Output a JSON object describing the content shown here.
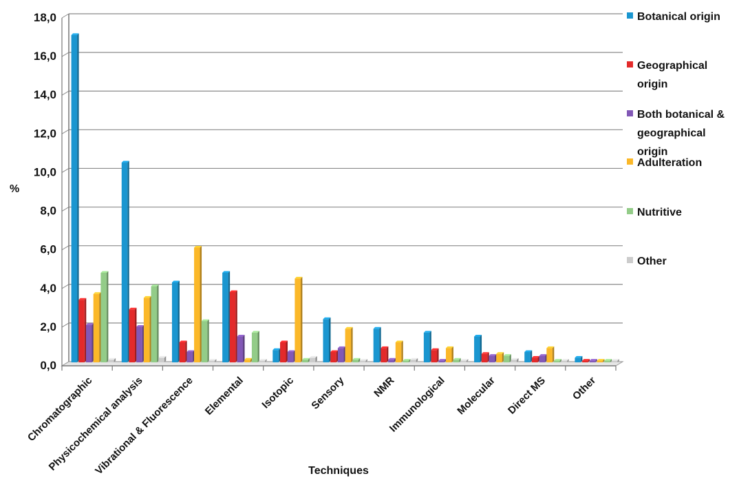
{
  "chart_data": {
    "type": "bar",
    "title": "",
    "xlabel": "Techniques",
    "ylabel": "%",
    "ylim": [
      0,
      18
    ],
    "yticks": [
      "0,0",
      "2,0",
      "4,0",
      "6,0",
      "8,0",
      "10,0",
      "12,0",
      "14,0",
      "16,0",
      "18,0"
    ],
    "grid": "horizontal",
    "legend_position": "right",
    "categories": [
      "Chromatographic",
      "Physicochemical analysis",
      "Vibrational & Fluorescence",
      "Elemental",
      "Isotopic",
      "Sensory",
      "NMR",
      "Immunological",
      "Molecular",
      "Direct MS",
      "Other"
    ],
    "series": [
      {
        "name": "Botanical origin",
        "legend_lines": [
          "Botanical origin"
        ],
        "color": "#1a96d0",
        "values": [
          16.9,
          10.3,
          4.1,
          4.6,
          0.6,
          2.2,
          1.7,
          1.5,
          1.3,
          0.5,
          0.2
        ]
      },
      {
        "name": "Geographical origin",
        "legend_lines": [
          "Geographical",
          "origin"
        ],
        "color": "#e32a2a",
        "values": [
          3.2,
          2.7,
          1.0,
          3.6,
          1.0,
          0.5,
          0.7,
          0.6,
          0.4,
          0.2,
          0.05
        ]
      },
      {
        "name": "Both botanical & geographical origin",
        "legend_lines": [
          "Both botanical &",
          "geographical",
          "origin"
        ],
        "color": "#8258b6",
        "values": [
          1.9,
          1.8,
          0.5,
          1.3,
          0.5,
          0.7,
          0.1,
          0.05,
          0.3,
          0.3,
          0.05
        ]
      },
      {
        "name": "Adulteration",
        "legend_lines": [
          "Adulteration"
        ],
        "color": "#fbb829",
        "values": [
          3.5,
          3.3,
          5.9,
          0.1,
          4.3,
          1.7,
          1.0,
          0.7,
          0.4,
          0.7,
          0.05
        ]
      },
      {
        "name": "Nutritive",
        "legend_lines": [
          "Nutritive"
        ],
        "color": "#93cc88",
        "values": [
          4.6,
          3.9,
          2.1,
          1.5,
          0.1,
          0.1,
          0.05,
          0.1,
          0.3,
          0.05,
          0.05
        ]
      },
      {
        "name": "Other",
        "legend_lines": [
          "Other"
        ],
        "color": "#cccccc",
        "values": [
          0.1,
          0.2,
          0.05,
          0.05,
          0.2,
          0.05,
          0.1,
          0.05,
          0.1,
          0.05,
          0.05
        ]
      }
    ]
  }
}
